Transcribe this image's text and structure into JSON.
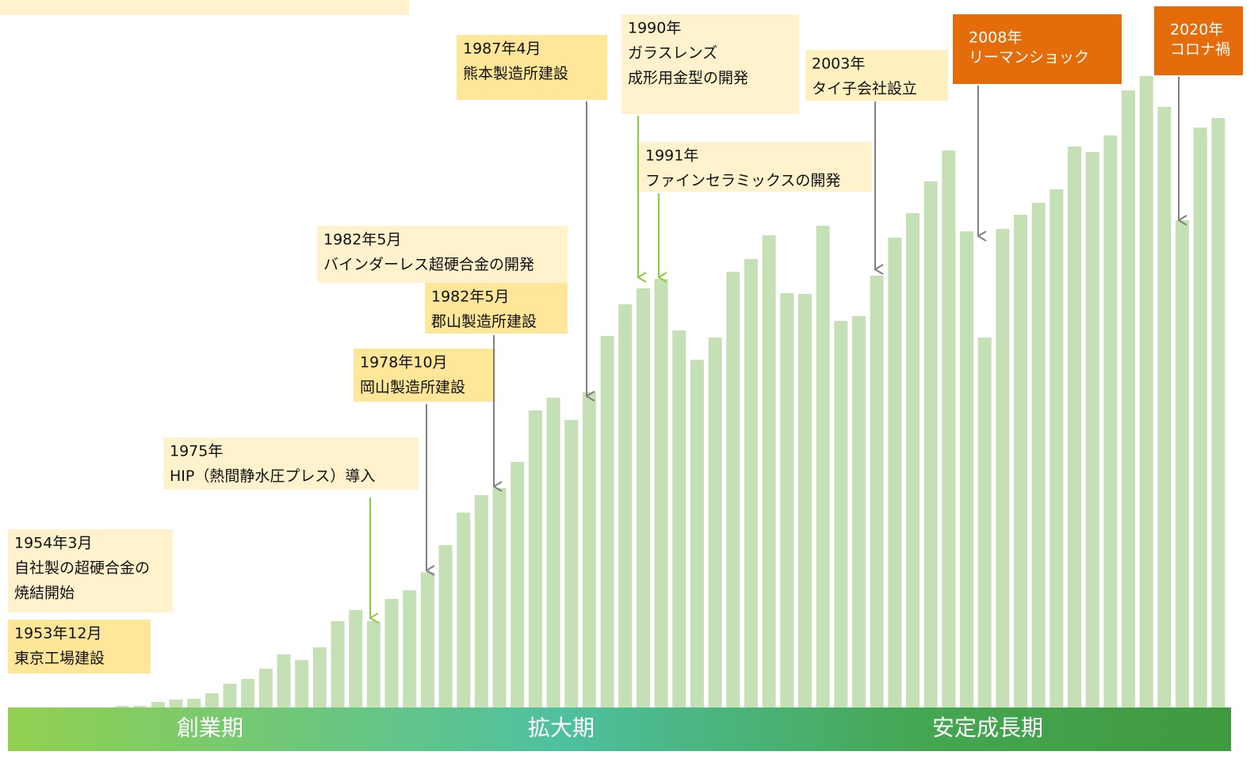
{
  "chart_data": {
    "type": "bar",
    "color": "#c5e0b4",
    "categories": [
      null,
      null,
      null,
      null,
      null,
      null,
      null,
      null,
      null,
      null,
      null,
      null,
      null,
      null,
      null,
      null,
      null,
      null,
      null,
      null,
      null,
      null,
      null,
      null,
      null,
      null,
      null,
      null,
      null,
      null,
      null,
      null,
      null,
      null,
      null,
      null,
      null,
      null,
      null,
      null,
      null,
      null,
      null,
      null,
      null,
      null,
      null,
      null,
      null,
      null,
      null,
      null,
      null,
      null,
      null,
      null,
      null,
      null,
      null,
      null,
      null,
      null
    ],
    "values": [
      2,
      2,
      7,
      10,
      11,
      18,
      30,
      36,
      49,
      67,
      60,
      76,
      109,
      123,
      109,
      137,
      148,
      171,
      205,
      246,
      268,
      277,
      310,
      375,
      391,
      363,
      398,
      469,
      509,
      529,
      541,
      476,
      439,
      467,
      550,
      566,
      596,
      523,
      522,
      608,
      488,
      494,
      545,
      593,
      624,
      664,
      703,
      601,
      467,
      604,
      622,
      637,
      654,
      708,
      701,
      722,
      779,
      797,
      758,
      615,
      732,
      744
    ],
    "ylim": [
      0,
      893
    ],
    "annotations": [
      {
        "lines": [
          "1953年12月",
          "東京工場建設"
        ]
      },
      {
        "lines": [
          "1954年3月",
          "自社製の超硬合金の",
          "焼結開始"
        ]
      },
      {
        "lines": [
          "1975年",
          "HIP（熱間静水圧プレス）導入"
        ]
      },
      {
        "lines": [
          "1978年10月",
          "岡山製造所建設"
        ]
      },
      {
        "lines": [
          "1982年5月",
          "バインダーレス超硬合金の開発"
        ]
      },
      {
        "lines": [
          "1982年5月",
          "郡山製造所建設"
        ]
      },
      {
        "lines": [
          "1987年4月",
          "熊本製造所建設"
        ]
      },
      {
        "lines": [
          "1990年",
          "ガラスレンズ",
          "成形用金型の開発"
        ]
      },
      {
        "lines": [
          "1991年",
          "ファインセラミックスの開発"
        ]
      },
      {
        "lines": [
          "2003年",
          "タイ子会社設立"
        ]
      },
      {
        "lines": [
          "2008年",
          "リーマンショック"
        ]
      },
      {
        "lines": [
          "2020年",
          "コロナ禍"
        ]
      }
    ],
    "phases": [
      "創業期",
      "拡大期",
      "安定成長期"
    ]
  }
}
